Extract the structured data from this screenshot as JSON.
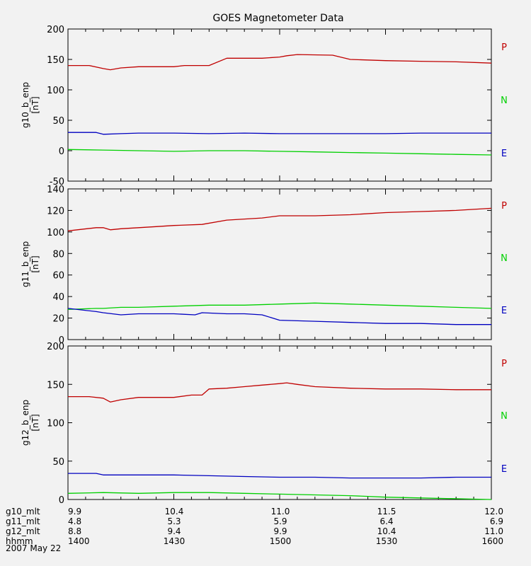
{
  "chart_data": {
    "type": "line",
    "title": "GOES Magnetometer Data",
    "x_range": [
      0,
      120
    ],
    "legend": [
      "P",
      "N",
      "E"
    ],
    "colors": {
      "P": "#c00000",
      "N": "#00d000",
      "E": "#0000c0"
    },
    "panels": [
      {
        "ylabel": "g10_b_enp",
        "unit": "[nT]",
        "ylim": [
          -50,
          200
        ],
        "ticks": [
          -50,
          0,
          50,
          100,
          150,
          200
        ],
        "series": [
          {
            "name": "P",
            "x": [
              0,
              6,
              10,
              12,
              15,
              20,
              25,
              30,
              33,
              40,
              45,
              55,
              60,
              62,
              65,
              75,
              80,
              90,
              100,
              110,
              120
            ],
            "values": [
              140,
              140,
              135,
              133,
              136,
              138,
              138,
              138,
              140,
              140,
              152,
              152,
              154,
              156,
              158,
              157,
              150,
              148,
              147,
              146,
              144
            ]
          },
          {
            "name": "N",
            "x": [
              0,
              10,
              20,
              30,
              40,
              50,
              60,
              70,
              80,
              90,
              100,
              110,
              120
            ],
            "values": [
              2,
              1,
              0,
              -1,
              0,
              0,
              -1,
              -2,
              -3,
              -4,
              -5,
              -6,
              -7
            ]
          },
          {
            "name": "E",
            "x": [
              0,
              8,
              10,
              15,
              20,
              30,
              40,
              50,
              60,
              70,
              80,
              90,
              100,
              110,
              120
            ],
            "values": [
              30,
              30,
              27,
              28,
              29,
              29,
              28,
              29,
              28,
              28,
              28,
              28,
              29,
              29,
              29
            ]
          }
        ]
      },
      {
        "ylabel": "g11_b_enp",
        "unit": "[nT]",
        "ylim": [
          0,
          140
        ],
        "ticks": [
          0,
          20,
          40,
          60,
          80,
          100,
          120,
          140
        ],
        "series": [
          {
            "name": "P",
            "x": [
              0,
              8,
              10,
              12,
              15,
              20,
              25,
              30,
              38,
              45,
              50,
              55,
              60,
              70,
              80,
              90,
              100,
              110,
              120
            ],
            "values": [
              101,
              104,
              104,
              102,
              103,
              104,
              105,
              106,
              107,
              111,
              112,
              113,
              115,
              115,
              116,
              118,
              119,
              120,
              122
            ]
          },
          {
            "name": "N",
            "x": [
              0,
              8,
              10,
              15,
              20,
              30,
              40,
              50,
              60,
              70,
              80,
              90,
              100,
              110,
              120
            ],
            "values": [
              28,
              29,
              29,
              30,
              30,
              31,
              32,
              32,
              33,
              34,
              33,
              32,
              31,
              30,
              29
            ]
          },
          {
            "name": "E",
            "x": [
              0,
              8,
              10,
              15,
              20,
              30,
              36,
              38,
              45,
              50,
              55,
              60,
              70,
              80,
              90,
              100,
              110,
              120
            ],
            "values": [
              29,
              26,
              25,
              23,
              24,
              24,
              23,
              25,
              24,
              24,
              23,
              18,
              17,
              16,
              15,
              15,
              14,
              14
            ]
          }
        ]
      },
      {
        "ylabel": "g12_b_enp",
        "unit": "[nT]",
        "ylim": [
          0,
          200
        ],
        "ticks": [
          0,
          50,
          100,
          150,
          200
        ],
        "series": [
          {
            "name": "P",
            "x": [
              0,
              6,
              10,
              12,
              15,
              20,
              25,
              30,
              35,
              38,
              40,
              45,
              50,
              55,
              60,
              62,
              65,
              70,
              80,
              90,
              100,
              110,
              120
            ],
            "values": [
              134,
              134,
              132,
              127,
              130,
              133,
              133,
              133,
              136,
              136,
              144,
              145,
              147,
              149,
              151,
              152,
              150,
              147,
              145,
              144,
              144,
              143,
              143
            ]
          },
          {
            "name": "N",
            "x": [
              0,
              10,
              20,
              30,
              40,
              50,
              60,
              70,
              80,
              90,
              100,
              110,
              120
            ],
            "values": [
              8,
              9,
              8,
              9,
              9,
              8,
              7,
              6,
              5,
              3,
              2,
              1,
              0
            ]
          },
          {
            "name": "E",
            "x": [
              0,
              8,
              10,
              20,
              30,
              40,
              50,
              60,
              70,
              80,
              90,
              100,
              110,
              120
            ],
            "values": [
              34,
              34,
              32,
              32,
              32,
              31,
              30,
              29,
              29,
              28,
              28,
              28,
              29,
              29
            ]
          }
        ]
      }
    ],
    "x_axis_rows": [
      {
        "label": "g10_mlt",
        "values": [
          "9.9",
          "10.4",
          "11.0",
          "11.5",
          "12.0"
        ]
      },
      {
        "label": "g11_mlt",
        "values": [
          "4.8",
          "5.3",
          "5.9",
          "6.4",
          "6.9"
        ]
      },
      {
        "label": "g12_mlt",
        "values": [
          "8.8",
          "9.4",
          "9.9",
          "10.4",
          "11.0"
        ]
      },
      {
        "label": "hhmm",
        "values": [
          "1400",
          "1430",
          "1500",
          "1530",
          "1600"
        ]
      }
    ],
    "date": "2007 May 22"
  }
}
